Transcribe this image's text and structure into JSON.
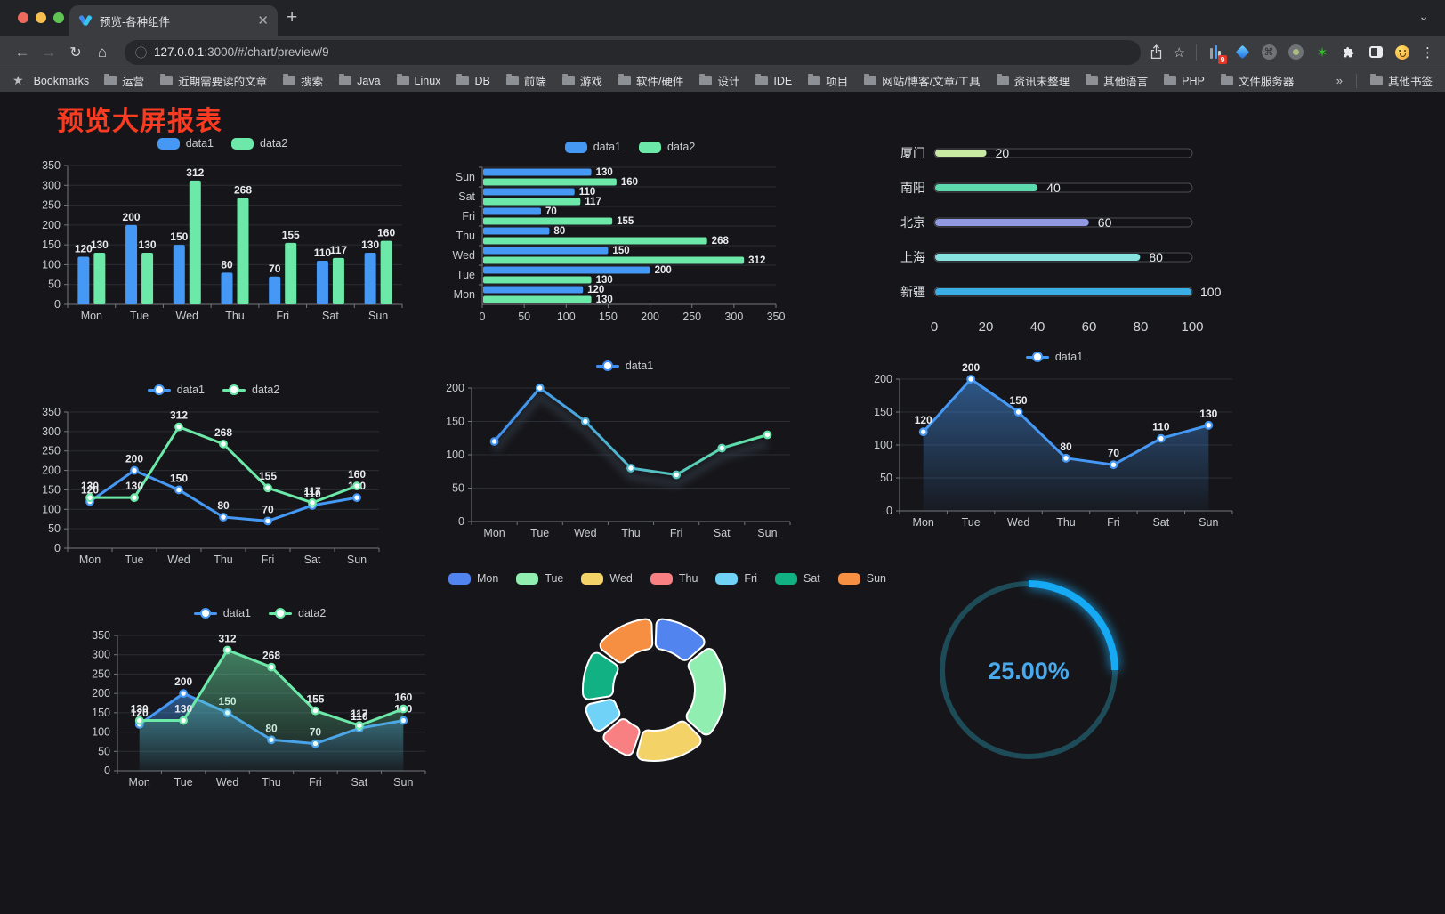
{
  "browser": {
    "tab_title": "预览-各种组件",
    "url_host": "127.0.0.1",
    "url_rest": ":3000/#/chart/preview/9",
    "bookmarks_label": "Bookmarks",
    "bookmarks_folders": [
      "运营",
      "近期需要读的文章",
      "搜索",
      "Java",
      "Linux",
      "DB",
      "前端",
      "游戏",
      "软件/硬件",
      "设计",
      "IDE",
      "项目",
      "网站/博客/文章/工具",
      "资讯未整理",
      "其他语言",
      "PHP",
      "文件服务器"
    ],
    "bookmarks_overflow": "»",
    "other_bookmarks": "其他书签",
    "extension_badge": "9"
  },
  "page": {
    "title": "预览大屏报表",
    "title_color": "#f93b22",
    "background": "#16161a"
  },
  "chart_data": [
    {
      "id": "bar-vertical",
      "type": "bar",
      "orientation": "vertical",
      "categories": [
        "Mon",
        "Tue",
        "Wed",
        "Thu",
        "Fri",
        "Sat",
        "Sun"
      ],
      "series": [
        {
          "name": "data1",
          "color": "#4598f4",
          "values": [
            120,
            200,
            150,
            80,
            70,
            110,
            130
          ]
        },
        {
          "name": "data2",
          "color": "#6ce8a8",
          "values": [
            130,
            130,
            312,
            268,
            155,
            117,
            160
          ]
        }
      ],
      "ylim": [
        0,
        350
      ],
      "ytick": 50,
      "legend": true,
      "legend_shape": "rect",
      "value_labels": true,
      "grid": true
    },
    {
      "id": "bar-horizontal",
      "type": "bar",
      "orientation": "horizontal",
      "categories": [
        "Mon",
        "Tue",
        "Wed",
        "Thu",
        "Fri",
        "Sat",
        "Sun"
      ],
      "series": [
        {
          "name": "data1",
          "color": "#4598f4",
          "values": [
            120,
            200,
            150,
            80,
            70,
            110,
            130
          ]
        },
        {
          "name": "data2",
          "color": "#6ce8a8",
          "values": [
            130,
            130,
            312,
            268,
            155,
            117,
            160
          ]
        }
      ],
      "xlim": [
        0,
        350
      ],
      "xtick": 50,
      "legend": true,
      "legend_shape": "rect",
      "value_labels": true,
      "grid": true
    },
    {
      "id": "capsule",
      "type": "capsule",
      "items": [
        {
          "label": "厦门",
          "value": 20,
          "color": "#c8e9a1"
        },
        {
          "label": "南阳",
          "value": 40,
          "color": "#5cd9ad"
        },
        {
          "label": "北京",
          "value": 60,
          "color": "#9199e2"
        },
        {
          "label": "上海",
          "value": 80,
          "color": "#88e3e0"
        },
        {
          "label": "新疆",
          "value": 100,
          "color": "#3caee6"
        }
      ],
      "xlim": [
        0,
        100
      ],
      "xticks": [
        0,
        20,
        40,
        60,
        80,
        100
      ]
    },
    {
      "id": "line-basic",
      "type": "line",
      "categories": [
        "Mon",
        "Tue",
        "Wed",
        "Thu",
        "Fri",
        "Sat",
        "Sun"
      ],
      "series": [
        {
          "name": "data1",
          "color": "#4598f4",
          "values": [
            120,
            200,
            150,
            80,
            70,
            110,
            130
          ]
        },
        {
          "name": "data2",
          "color": "#6ce8a8",
          "values": [
            130,
            130,
            312,
            268,
            155,
            117,
            160
          ]
        }
      ],
      "ylim": [
        0,
        350
      ],
      "ytick": 50,
      "legend": true,
      "legend_shape": "line",
      "value_labels": true,
      "grid": true
    },
    {
      "id": "line-gradient",
      "type": "line",
      "categories": [
        "Mon",
        "Tue",
        "Wed",
        "Thu",
        "Fri",
        "Sat",
        "Sun"
      ],
      "series": [
        {
          "name": "data1",
          "gradient": [
            "#3f8df3",
            "#62e6a3"
          ],
          "values": [
            120,
            200,
            150,
            80,
            70,
            110,
            130
          ]
        }
      ],
      "ylim": [
        0,
        200
      ],
      "ytick": 50,
      "legend": true,
      "legend_shape": "line",
      "value_labels": false,
      "shadow": true,
      "grid": true
    },
    {
      "id": "area-single",
      "type": "line",
      "categories": [
        "Mon",
        "Tue",
        "Wed",
        "Thu",
        "Fri",
        "Sat",
        "Sun"
      ],
      "series": [
        {
          "name": "data1",
          "color": "#4598f4",
          "area": true,
          "values": [
            120,
            200,
            150,
            80,
            70,
            110,
            130
          ]
        }
      ],
      "ylim": [
        0,
        200
      ],
      "ytick": 50,
      "legend": true,
      "legend_shape": "line",
      "value_labels": true,
      "grid": true
    },
    {
      "id": "area-double",
      "type": "line",
      "categories": [
        "Mon",
        "Tue",
        "Wed",
        "Thu",
        "Fri",
        "Sat",
        "Sun"
      ],
      "series": [
        {
          "name": "data1",
          "color": "#4598f4",
          "area": true,
          "values": [
            120,
            200,
            150,
            80,
            70,
            110,
            130
          ]
        },
        {
          "name": "data2",
          "color": "#6ce8a8",
          "area": true,
          "values": [
            130,
            130,
            312,
            268,
            155,
            117,
            160
          ]
        }
      ],
      "ylim": [
        0,
        350
      ],
      "ytick": 50,
      "legend": true,
      "legend_shape": "line",
      "value_labels": true,
      "grid": true
    },
    {
      "id": "donut",
      "type": "donut",
      "legend": true,
      "legend_shape": "rect",
      "items": [
        {
          "label": "Mon",
          "value": 120,
          "color": "#5184ee"
        },
        {
          "label": "Tue",
          "value": 200,
          "color": "#90eeb1"
        },
        {
          "label": "Wed",
          "value": 150,
          "color": "#f3d368"
        },
        {
          "label": "Thu",
          "value": 80,
          "color": "#f87f82"
        },
        {
          "label": "Fri",
          "value": 70,
          "color": "#6fd2f6"
        },
        {
          "label": "Sat",
          "value": 110,
          "color": "#12b183"
        },
        {
          "label": "Sun",
          "value": 130,
          "color": "#f78f42"
        }
      ]
    },
    {
      "id": "gauge",
      "type": "gauge",
      "value": 25,
      "max": 100,
      "display": "25.00%",
      "color": "#16aaf5",
      "track_color": "#1d4b58",
      "text_color": "#4aa9ea"
    }
  ]
}
